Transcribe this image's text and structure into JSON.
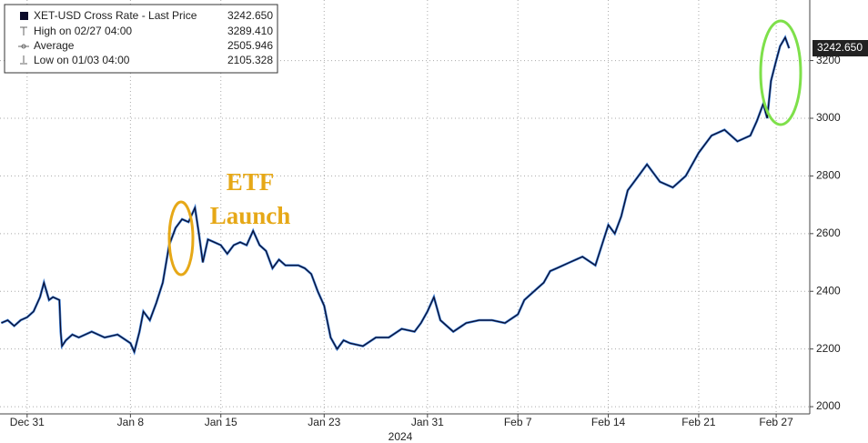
{
  "chart_data": {
    "type": "line",
    "series": [
      {
        "name": "XET-USD Cross Rate - Last Price",
        "color": "#0b0b2a",
        "x": [
          -2,
          -1.5,
          -1,
          -0.5,
          0,
          0.5,
          1,
          1.3,
          1.7,
          2,
          2.5,
          2.6,
          2.7,
          3,
          3.5,
          4,
          5,
          6,
          7,
          8,
          8.3,
          8.7,
          9,
          9.5,
          10,
          10.5,
          11,
          11.5,
          12,
          12.5,
          13,
          13.3,
          13.6,
          14,
          14.5,
          15,
          15.5,
          16,
          16.5,
          17,
          17.5,
          18,
          18.5,
          19,
          19.5,
          20,
          21,
          21.5,
          22,
          22.5,
          23,
          23.5,
          24,
          24.5,
          25,
          26,
          27,
          28,
          29,
          30,
          30.5,
          31,
          31.5,
          32,
          33,
          34,
          35,
          36,
          37,
          38,
          38.5,
          39,
          40,
          40.5,
          41,
          42,
          43,
          44,
          44.5,
          45,
          45.5,
          46,
          46.5,
          47,
          48,
          49,
          50,
          51,
          52,
          53,
          54,
          55,
          56,
          56.5,
          57,
          57.3,
          57.6,
          58,
          58.3,
          58.7,
          59
        ],
        "values": [
          2290,
          2300,
          2280,
          2300,
          2310,
          2330,
          2380,
          2430,
          2370,
          2380,
          2370,
          2260,
          2210,
          2230,
          2250,
          2240,
          2260,
          2240,
          2250,
          2220,
          2190,
          2260,
          2330,
          2300,
          2360,
          2430,
          2560,
          2620,
          2650,
          2640,
          2690,
          2600,
          2500,
          2580,
          2570,
          2560,
          2530,
          2560,
          2570,
          2560,
          2610,
          2560,
          2540,
          2480,
          2510,
          2490,
          2490,
          2480,
          2460,
          2400,
          2350,
          2240,
          2200,
          2230,
          2220,
          2210,
          2240,
          2240,
          2270,
          2260,
          2290,
          2330,
          2380,
          2300,
          2260,
          2290,
          2300,
          2300,
          2290,
          2320,
          2370,
          2390,
          2430,
          2470,
          2480,
          2500,
          2520,
          2490,
          2560,
          2630,
          2600,
          2660,
          2750,
          2780,
          2840,
          2780,
          2760,
          2800,
          2880,
          2940,
          2960,
          2920,
          2940,
          2990,
          3050,
          3000,
          3130,
          3200,
          3250,
          3280,
          3242.65
        ]
      }
    ],
    "legend_rows": [
      {
        "label": "High on 02/27 04:00",
        "value": 3289.41,
        "value_label": "3289.410"
      },
      {
        "label": "Average",
        "value": 2505.946,
        "value_label": "2505.946"
      },
      {
        "label": "Low on 01/03 04:00",
        "value": 2105.328,
        "value_label": "2105.328"
      }
    ],
    "last_price": 3242.65,
    "last_price_label": "3242.650",
    "annotation": [
      "ETF",
      "Launch"
    ],
    "xlabel": "2024",
    "xlim": [
      -2.1,
      60.6
    ],
    "xticks": [
      {
        "value": 0,
        "label": "Dec 31"
      },
      {
        "value": 8,
        "label": "Jan 8"
      },
      {
        "value": 15,
        "label": "Jan 15"
      },
      {
        "value": 23,
        "label": "Jan 23"
      },
      {
        "value": 31,
        "label": "Jan 31"
      },
      {
        "value": 38,
        "label": "Feb 7"
      },
      {
        "value": 45,
        "label": "Feb 14"
      },
      {
        "value": 52,
        "label": "Feb 21"
      },
      {
        "value": 58,
        "label": "Feb 27"
      }
    ],
    "ylim": [
      1975,
      3410
    ],
    "yticks": [
      2000,
      2200,
      2400,
      2600,
      2800,
      3000,
      3200
    ],
    "grid": true
  }
}
